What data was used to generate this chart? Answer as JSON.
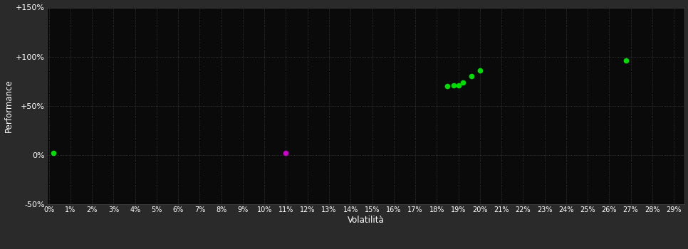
{
  "background_color": "#2a2a2a",
  "plot_bg_color": "#0a0a0a",
  "grid_color": "#404040",
  "text_color": "#ffffff",
  "xlabel": "Volatilità",
  "ylabel": "Performance",
  "xlim": [
    -0.001,
    0.295
  ],
  "ylim": [
    -0.5,
    1.5
  ],
  "yticks": [
    -0.5,
    0.0,
    0.5,
    1.0,
    1.5
  ],
  "ytick_labels": [
    "-50%",
    "0%",
    "+50%",
    "+100%",
    "+150%"
  ],
  "xticks": [
    0.0,
    0.01,
    0.02,
    0.03,
    0.04,
    0.05,
    0.06,
    0.07,
    0.08,
    0.09,
    0.1,
    0.11,
    0.12,
    0.13,
    0.14,
    0.15,
    0.16,
    0.17,
    0.18,
    0.19,
    0.2,
    0.21,
    0.22,
    0.23,
    0.24,
    0.25,
    0.26,
    0.27,
    0.28,
    0.29
  ],
  "xtick_labels": [
    "0%",
    "1%",
    "2%",
    "3%",
    "4%",
    "5%",
    "6%",
    "7%",
    "8%",
    "9%",
    "10%",
    "11%",
    "12%",
    "13%",
    "14%",
    "15%",
    "16%",
    "17%",
    "18%",
    "19%",
    "20%",
    "21%",
    "22%",
    "23%",
    "24%",
    "25%",
    "26%",
    "27%",
    "28%",
    "29%"
  ],
  "points_green": [
    [
      0.002,
      0.02
    ],
    [
      0.185,
      0.7
    ],
    [
      0.188,
      0.71
    ],
    [
      0.19,
      0.71
    ],
    [
      0.192,
      0.74
    ],
    [
      0.196,
      0.8
    ],
    [
      0.2,
      0.86
    ],
    [
      0.268,
      0.96
    ]
  ],
  "points_magenta": [
    [
      0.11,
      0.02
    ]
  ],
  "green_color": "#00dd00",
  "magenta_color": "#cc00cc",
  "marker_size": 5.5
}
